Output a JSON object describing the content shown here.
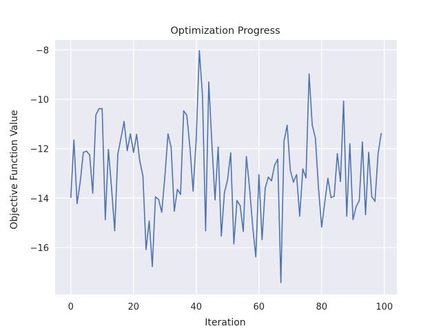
{
  "chart_data": {
    "type": "line",
    "title": "Optimization Progress",
    "xlabel": "Iteration",
    "ylabel": "Objective Function Value",
    "xlim": [
      -5,
      104
    ],
    "ylim": [
      -17.9,
      -7.6
    ],
    "xticks": [
      0,
      20,
      40,
      60,
      80,
      100
    ],
    "yticks": [
      -16,
      -14,
      -12,
      -10,
      -8
    ],
    "ytick_labels": [
      "−16",
      "−14",
      "−12",
      "−10",
      "−8"
    ],
    "grid": true,
    "legend": "none",
    "colors": {
      "background": "#eaeaf2",
      "grid": "#ffffff",
      "line": "#4c72b0"
    },
    "series": [
      {
        "x": [
          0,
          1,
          2,
          3,
          4,
          5,
          6,
          7,
          8,
          9,
          10,
          11,
          12,
          13,
          14,
          15,
          16,
          17,
          18,
          19,
          20,
          21,
          22,
          23,
          24,
          25,
          26,
          27,
          28,
          29,
          30,
          31,
          32,
          33,
          34,
          35,
          36,
          37,
          38,
          39,
          40,
          41,
          42,
          43,
          44,
          45,
          46,
          47,
          48,
          49,
          50,
          51,
          52,
          53,
          54,
          55,
          56,
          57,
          58,
          59,
          60,
          61,
          62,
          63,
          64,
          65,
          66,
          67,
          68,
          69,
          70,
          71,
          72,
          73,
          74,
          75,
          76,
          77,
          78,
          79,
          80,
          81,
          82,
          83,
          84,
          85,
          86,
          87,
          88,
          89,
          90,
          91,
          92,
          93,
          94,
          95,
          96,
          97,
          98,
          99
        ],
        "values": [
          -13.97,
          -11.65,
          -14.22,
          -13.35,
          -12.15,
          -12.1,
          -12.25,
          -13.8,
          -10.63,
          -10.38,
          -10.38,
          -14.87,
          -12.03,
          -13.6,
          -15.32,
          -12.22,
          -11.57,
          -10.9,
          -12.08,
          -11.4,
          -12.15,
          -11.42,
          -12.5,
          -13.1,
          -16.08,
          -14.93,
          -16.77,
          -13.95,
          -14.05,
          -14.57,
          -13.13,
          -11.4,
          -11.95,
          -14.53,
          -13.65,
          -13.85,
          -10.47,
          -10.65,
          -11.95,
          -13.72,
          -11.6,
          -8.03,
          -9.85,
          -15.32,
          -9.3,
          -11.8,
          -14.07,
          -11.93,
          -15.53,
          -13.78,
          -13.25,
          -12.17,
          -15.85,
          -14.1,
          -14.3,
          -15.35,
          -12.32,
          -13.57,
          -15.13,
          -16.38,
          -13.05,
          -15.68,
          -13.6,
          -13.15,
          -13.3,
          -12.67,
          -12.42,
          -17.42,
          -11.7,
          -11.05,
          -12.87,
          -13.35,
          -13.05,
          -14.73,
          -12.82,
          -13.18,
          -8.98,
          -11.05,
          -11.57,
          -13.6,
          -15.17,
          -14.17,
          -13.2,
          -13.98,
          -13.92,
          -12.2,
          -13.33,
          -10.08,
          -14.73,
          -11.8,
          -14.87,
          -14.35,
          -14.1,
          -11.73,
          -14.67,
          -12.15,
          -13.95,
          -14.13,
          -12.2,
          -11.38
        ]
      }
    ]
  }
}
